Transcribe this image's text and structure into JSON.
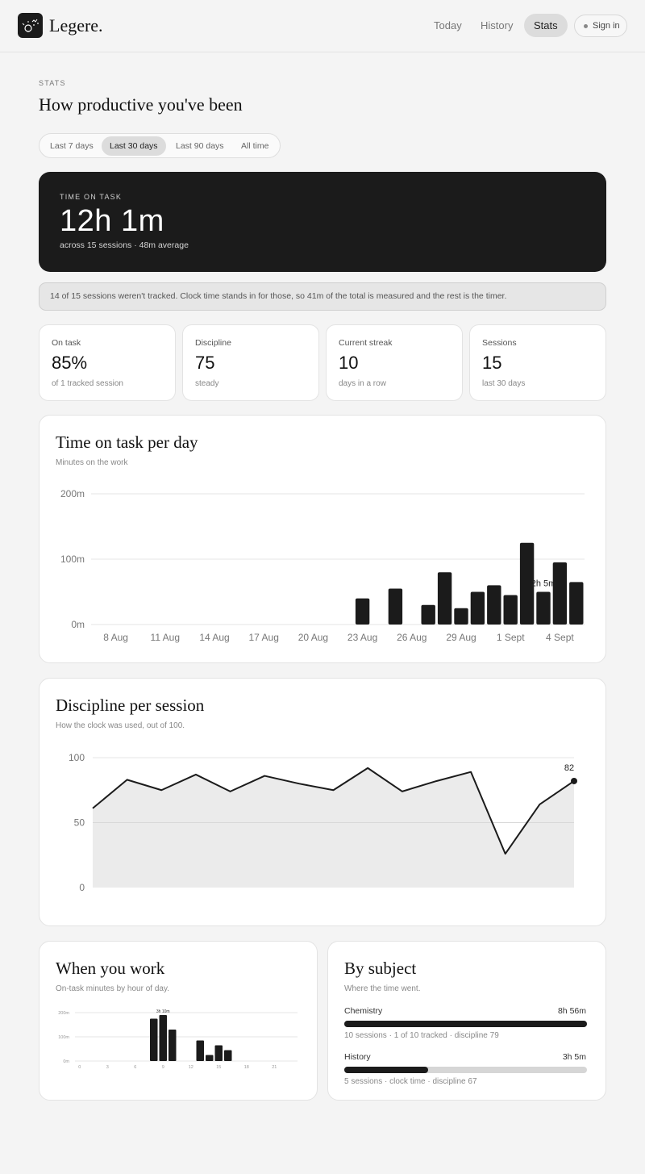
{
  "header": {
    "brand": "Legere.",
    "nav": [
      {
        "label": "Today",
        "active": false
      },
      {
        "label": "History",
        "active": false
      },
      {
        "label": "Stats",
        "active": true
      }
    ],
    "signin_label": "Sign in",
    "logo_icon": "lightbulb-sparkles-icon"
  },
  "page": {
    "eyebrow": "STATS",
    "title": "How productive you've been"
  },
  "ranges": [
    {
      "label": "Last 7 days",
      "active": false
    },
    {
      "label": "Last 30 days",
      "active": true
    },
    {
      "label": "Last 90 days",
      "active": false
    },
    {
      "label": "All time",
      "active": false
    }
  ],
  "hero": {
    "label": "TIME ON TASK",
    "value": "12h 1m",
    "sub": "across 15 sessions · 48m average"
  },
  "notice": "14 of 15 sessions weren't tracked. Clock time stands in for those, so 41m of the total is measured and the rest is the timer.",
  "stats": [
    {
      "label": "On task",
      "value": "85%",
      "sub": "of 1 tracked session"
    },
    {
      "label": "Discipline",
      "value": "75",
      "sub": "steady"
    },
    {
      "label": "Current streak",
      "value": "10",
      "sub": "days in a row"
    },
    {
      "label": "Sessions",
      "value": "15",
      "sub": "last 30 days"
    }
  ],
  "time_card": {
    "title": "Time on task per day",
    "sub": "Minutes on the work"
  },
  "discipline_card": {
    "title": "Discipline per session",
    "sub": "How the clock was used, out of 100."
  },
  "when_card": {
    "title": "When you work",
    "sub": "On-task minutes by hour of day."
  },
  "subject_card": {
    "title": "By subject",
    "sub": "Where the time went.",
    "subjects": [
      {
        "name": "Chemistry",
        "time": "8h 56m",
        "meta": "10 sessions · 1 of 10 tracked · discipline 79",
        "share": 1.0
      },
      {
        "name": "History",
        "time": "3h 5m",
        "meta": "5 sessions · clock time · discipline 67",
        "share": 0.345
      }
    ]
  },
  "colors": {
    "ink": "#1b1b1b",
    "area": "#e8e8e8",
    "grid": "#e6e6e6"
  },
  "chart_data": [
    {
      "type": "bar",
      "title": "Time on task per day",
      "subtitle": "Minutes on the work",
      "x_ticks": [
        "8 Aug",
        "11 Aug",
        "14 Aug",
        "17 Aug",
        "20 Aug",
        "23 Aug",
        "26 Aug",
        "29 Aug",
        "1 Sept",
        "4 Sept"
      ],
      "y_ticks": [
        "0m",
        "100m",
        "200m"
      ],
      "ylim": [
        0,
        200
      ],
      "categories": [
        "7 Aug",
        "8 Aug",
        "9 Aug",
        "10 Aug",
        "11 Aug",
        "12 Aug",
        "13 Aug",
        "14 Aug",
        "15 Aug",
        "16 Aug",
        "17 Aug",
        "18 Aug",
        "19 Aug",
        "20 Aug",
        "21 Aug",
        "22 Aug",
        "23 Aug",
        "24 Aug",
        "25 Aug",
        "26 Aug",
        "27 Aug",
        "28 Aug",
        "29 Aug",
        "30 Aug",
        "31 Aug",
        "1 Sept",
        "2 Sept",
        "3 Sept",
        "4 Sept",
        "5 Sept"
      ],
      "values": [
        0,
        0,
        0,
        0,
        0,
        0,
        0,
        0,
        0,
        0,
        0,
        0,
        0,
        0,
        0,
        0,
        40,
        0,
        55,
        0,
        30,
        80,
        25,
        50,
        60,
        45,
        125,
        50,
        95,
        65
      ],
      "annotation": {
        "category": "3 Sept",
        "label": "2h 5m"
      },
      "grid": true
    },
    {
      "type": "area",
      "title": "Discipline per session",
      "subtitle": "How the clock was used, out of 100.",
      "y_ticks": [
        "0",
        "50",
        "100"
      ],
      "ylim": [
        0,
        100
      ],
      "x": [
        1,
        2,
        3,
        4,
        5,
        6,
        7,
        8,
        9,
        10,
        11,
        12,
        13,
        14,
        15
      ],
      "values": [
        61,
        83,
        75,
        87,
        74,
        86,
        80,
        75,
        92,
        74,
        82,
        89,
        26,
        64,
        82
      ],
      "last_label": "82",
      "grid": true
    },
    {
      "type": "bar",
      "title": "When you work",
      "subtitle": "On-task minutes by hour of day.",
      "x_ticks": [
        "0",
        "3",
        "6",
        "9",
        "12",
        "15",
        "18",
        "21"
      ],
      "y_ticks": [
        "0m",
        "100m",
        "200m"
      ],
      "ylim": [
        0,
        200
      ],
      "categories": [
        0,
        1,
        2,
        3,
        4,
        5,
        6,
        7,
        8,
        9,
        10,
        11,
        12,
        13,
        14,
        15,
        16,
        17,
        18,
        19,
        20,
        21,
        22,
        23
      ],
      "values": [
        0,
        0,
        0,
        0,
        0,
        0,
        0,
        0,
        175,
        190,
        130,
        0,
        0,
        85,
        25,
        65,
        45,
        0,
        0,
        0,
        0,
        0,
        0,
        0
      ],
      "annotation": {
        "category": 9,
        "label": "3h 10m"
      },
      "grid": true
    }
  ]
}
